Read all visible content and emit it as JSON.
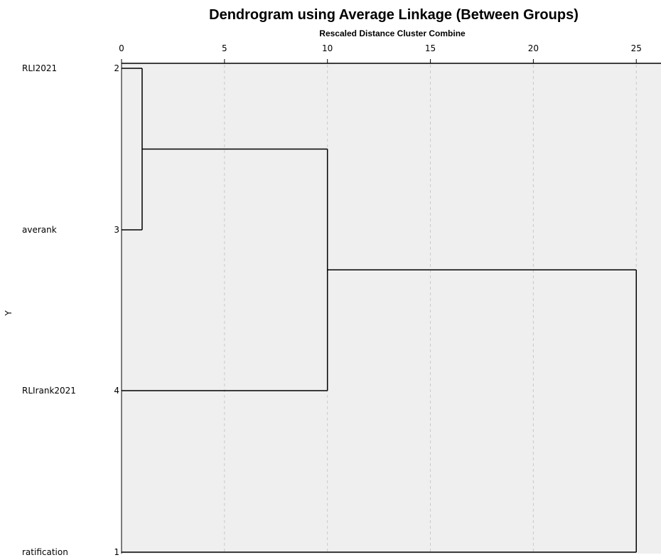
{
  "chart_data": {
    "type": "dendrogram",
    "title": "Dendrogram using Average Linkage (Between Groups)",
    "subtitle": "Rescaled Distance Cluster Combine",
    "ylabel": "Y",
    "x_ticks": [
      0,
      5,
      10,
      15,
      20,
      25
    ],
    "xlim": [
      0,
      26.2
    ],
    "grid": true,
    "cases": [
      {
        "name": "RLI2021",
        "id": "2"
      },
      {
        "name": "averank",
        "id": "3"
      },
      {
        "name": "RLIrank2021",
        "id": "4"
      },
      {
        "name": "ratification",
        "id": "1"
      }
    ],
    "merges": [
      {
        "members": [
          "RLI2021",
          "averank"
        ],
        "distance": 1
      },
      {
        "members": [
          "RLI2021",
          "averank",
          "RLIrank2021"
        ],
        "distance": 10
      },
      {
        "members": [
          "RLI2021",
          "averank",
          "RLIrank2021",
          "ratification"
        ],
        "distance": 25
      }
    ]
  },
  "colors": {
    "plot_background": "#efefef",
    "grid": "#c8c8c8",
    "lines": "#000000",
    "page_background": "#ffffff"
  }
}
